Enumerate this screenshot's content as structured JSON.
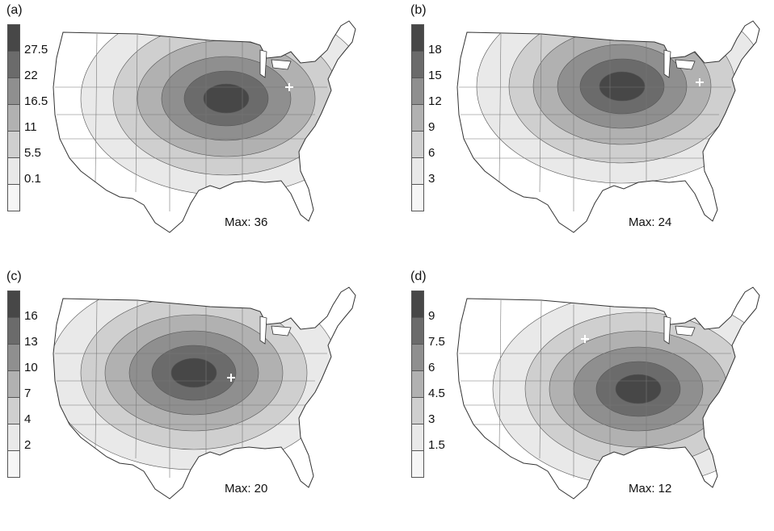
{
  "panels": [
    {
      "id": "a",
      "label": "(a)",
      "legend_ticks": [
        "27.5",
        "22",
        "16.5",
        "11",
        "5.5",
        "0.1"
      ],
      "legend_colors": [
        "#474747",
        "#6b6b6b",
        "#8f8f8f",
        "#b1b1b1",
        "#cfcfcf",
        "#e9e9e9",
        "#f6f6f6"
      ],
      "max_label": "Max: 36"
    },
    {
      "id": "b",
      "label": "(b)",
      "legend_ticks": [
        "18",
        "15",
        "12",
        "9",
        "6",
        "3"
      ],
      "legend_colors": [
        "#474747",
        "#6b6b6b",
        "#8f8f8f",
        "#b1b1b1",
        "#cfcfcf",
        "#e9e9e9",
        "#f6f6f6"
      ],
      "max_label": "Max: 24"
    },
    {
      "id": "c",
      "label": "(c)",
      "legend_ticks": [
        "16",
        "13",
        "10",
        "7",
        "4",
        "2"
      ],
      "legend_colors": [
        "#474747",
        "#6b6b6b",
        "#8f8f8f",
        "#b1b1b1",
        "#cfcfcf",
        "#e9e9e9",
        "#f6f6f6"
      ],
      "max_label": "Max: 20"
    },
    {
      "id": "d",
      "label": "(d)",
      "legend_ticks": [
        "9",
        "7.5",
        "6",
        "4.5",
        "3",
        "1.5"
      ],
      "legend_colors": [
        "#474747",
        "#6b6b6b",
        "#8f8f8f",
        "#b1b1b1",
        "#cfcfcf",
        "#e9e9e9",
        "#f6f6f6"
      ],
      "max_label": "Max: 12"
    }
  ]
}
